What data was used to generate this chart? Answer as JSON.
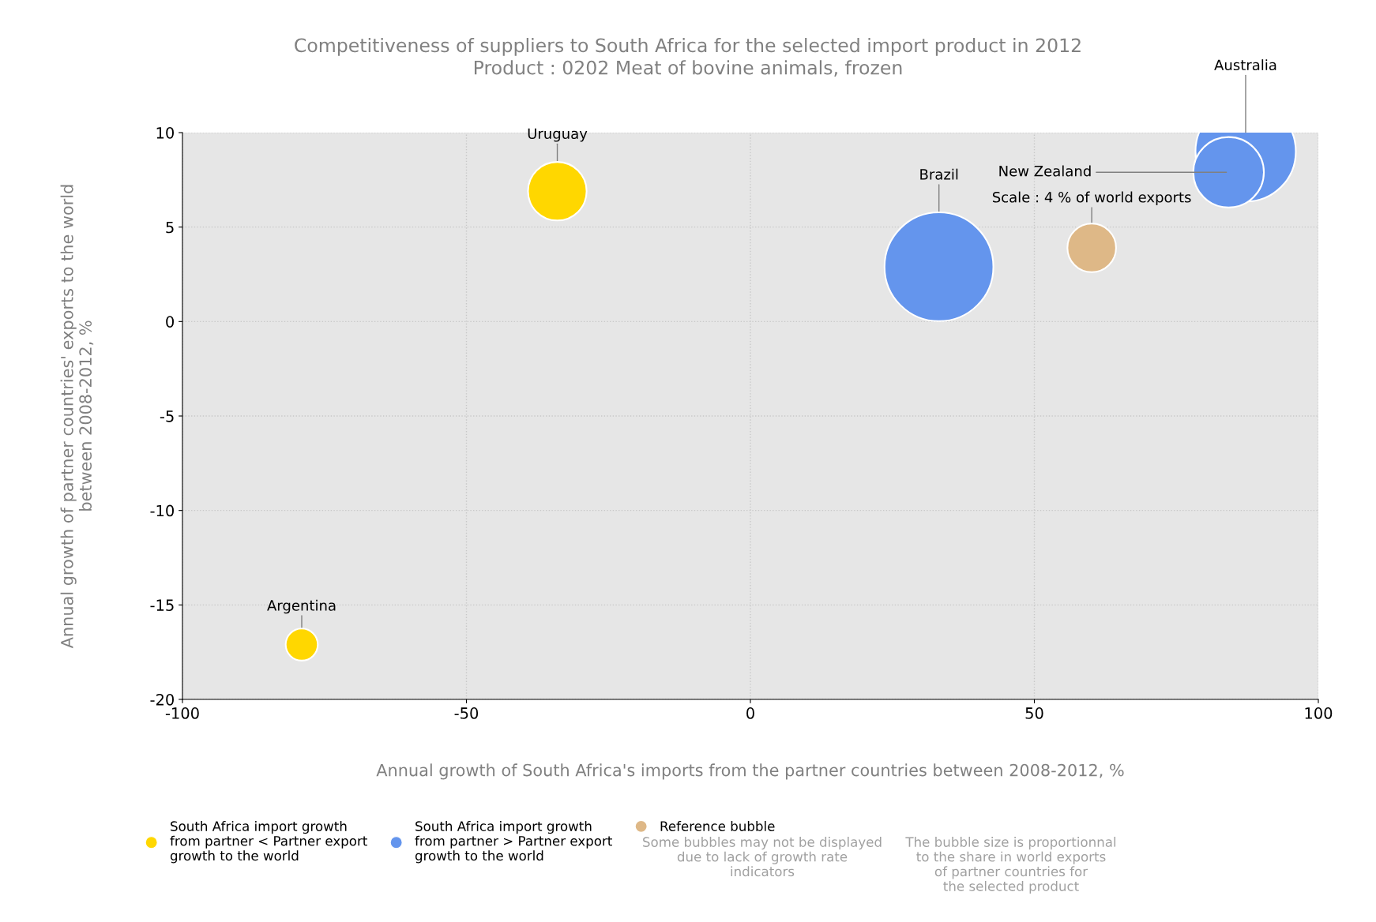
{
  "chart_data": {
    "type": "bubble",
    "title": "Competitiveness of suppliers to South Africa for the selected import product in 2012\nProduct : 0202 Meat of bovine animals, frozen",
    "xlabel": "Annual growth of South Africa's imports from the partner countries between 2008-2012, %",
    "ylabel": "Annual growth of partner countries' exports to the world\nbetween 2008-2012, %",
    "xlim": [
      -100,
      100
    ],
    "xticks": [
      -100,
      -50,
      0,
      50,
      100
    ],
    "ylim": [
      -20,
      10
    ],
    "yticks": [
      -20,
      -15,
      -10,
      -5,
      0,
      5,
      10
    ],
    "grid": true,
    "legend": "bottom",
    "series": [
      {
        "name": "South Africa import growth\nfrom partner < Partner export\ngrowth to the world",
        "color": "#ffd700",
        "x": [
          -34,
          -79
        ],
        "values": [
          6.9,
          -17.1
        ],
        "sizes": [
          0.29,
          0.087
        ]
      },
      {
        "name": "South Africa import growth\nfrom partner > Partner export\ngrowth to the world",
        "color": "#6495ed",
        "x": [
          33.2,
          87.2,
          84.2
        ],
        "values": [
          2.9,
          9.0,
          7.9
        ],
        "sizes": [
          1,
          0.85,
          0.42
        ]
      },
      {
        "name": "Reference bubble",
        "color": "#deb887",
        "x": [
          60.1
        ],
        "values": [
          3.9
        ],
        "sizes": [
          0.2
        ]
      }
    ],
    "annotations": [
      {
        "text": "Uruguay",
        "x": -34,
        "y": 6.9
      },
      {
        "text": "Argentina",
        "x": -79,
        "y": -17.1
      },
      {
        "text": "Brazil",
        "x": 33.2,
        "y": 2.9
      },
      {
        "text": "Australia",
        "x": 87.2,
        "y": 9.0
      },
      {
        "text": "New Zealand",
        "x": 84.2,
        "y": 7.9
      },
      {
        "text": "Scale : 4 % of world exports",
        "x": 60.1,
        "y": 3.9
      },
      "Some bubbles may not be displayed\ndue to lack of growth rate\nindicators",
      "The bubble size is proportionnal\nto the share in world exports\nof partner countries for\nthe selected product"
    ]
  }
}
